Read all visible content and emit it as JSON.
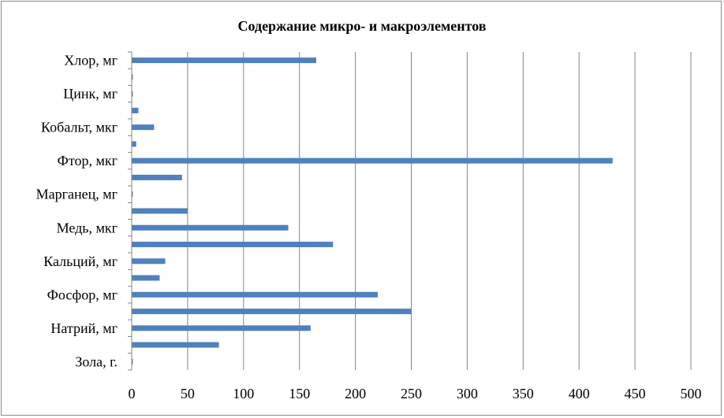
{
  "chart_data": {
    "type": "bar",
    "orientation": "horizontal",
    "title": "Содержание микро- и макроэлементов",
    "xlabel": "",
    "ylabel": "",
    "xlim": [
      0,
      500
    ],
    "xticks": [
      0,
      50,
      100,
      150,
      200,
      250,
      300,
      350,
      400,
      450,
      500
    ],
    "grid": true,
    "legend": "none",
    "bar_color": "#4f81bd",
    "categories": [
      "Зола, г.",
      "",
      "Натрий, мг",
      "",
      "Фосфор, мг",
      "",
      "Кальций, мг",
      "",
      "Медь, мкг",
      "",
      "Марганец, мг",
      "",
      "Фтор, мкг",
      "",
      "Кобальт, мкг",
      "",
      "Цинк, мг",
      "",
      "Хлор, мг"
    ],
    "values": [
      1,
      78,
      160,
      250,
      220,
      25,
      30,
      180,
      140,
      50,
      1,
      45,
      430,
      4,
      20,
      6,
      1,
      1,
      165
    ]
  }
}
